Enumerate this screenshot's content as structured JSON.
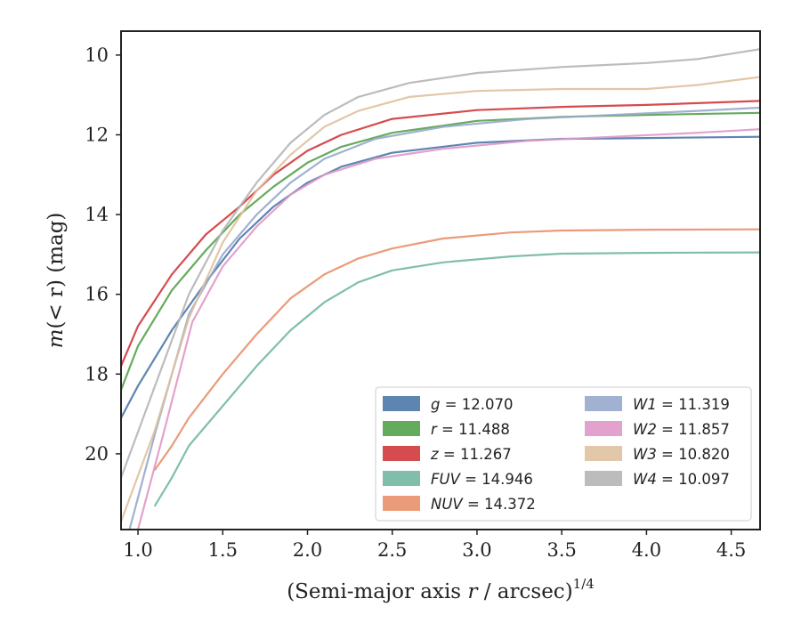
{
  "chart_data": {
    "type": "line",
    "xlabel": "(Semi-major axis r / arcsec)",
    "xlabel_italic": "r",
    "xlabel_prefix": "(Semi-major axis ",
    "xlabel_suffix": " / arcsec)",
    "xlabel_sup": "1/4",
    "ylabel_prefix": "m",
    "ylabel_mid": "(< r)",
    "ylabel_suffix": " (mag)",
    "xlim": [
      0.9,
      4.67
    ],
    "ylim": [
      21.9,
      9.4
    ],
    "y_inverted": true,
    "xticks": [
      1.0,
      1.5,
      2.0,
      2.5,
      3.0,
      3.5,
      4.0,
      4.5
    ],
    "xtick_labels": [
      "1.0",
      "1.5",
      "2.0",
      "2.5",
      "3.0",
      "3.5",
      "4.0",
      "4.5"
    ],
    "yticks": [
      10,
      12,
      14,
      16,
      18,
      20
    ],
    "ytick_labels": [
      "10",
      "12",
      "14",
      "16",
      "18",
      "20"
    ],
    "legend_position": "lower-right",
    "series": [
      {
        "name": "g",
        "value": "12.070",
        "label": "g = 12.070",
        "color": "#4c78a8",
        "x": [
          0.9,
          1.0,
          1.2,
          1.4,
          1.6,
          1.8,
          2.0,
          2.2,
          2.5,
          3.0,
          3.5,
          4.0,
          4.67
        ],
        "y": [
          19.1,
          18.3,
          16.9,
          15.7,
          14.6,
          13.8,
          13.2,
          12.8,
          12.45,
          12.2,
          12.1,
          12.08,
          12.05
        ]
      },
      {
        "name": "r",
        "value": "11.488",
        "label": "r = 11.488",
        "color": "#54a24b",
        "x": [
          0.9,
          1.0,
          1.2,
          1.4,
          1.6,
          1.8,
          2.0,
          2.2,
          2.5,
          3.0,
          3.5,
          4.0,
          4.67
        ],
        "y": [
          18.4,
          17.3,
          15.9,
          14.9,
          14.0,
          13.3,
          12.7,
          12.3,
          11.95,
          11.65,
          11.55,
          11.5,
          11.45
        ]
      },
      {
        "name": "z",
        "value": "11.267",
        "label": "z = 11.267",
        "color": "#d0373b",
        "x": [
          0.9,
          1.0,
          1.2,
          1.4,
          1.6,
          1.8,
          2.0,
          2.2,
          2.5,
          3.0,
          3.5,
          4.0,
          4.67
        ],
        "y": [
          17.8,
          16.8,
          15.5,
          14.5,
          13.8,
          13.0,
          12.4,
          12.0,
          11.6,
          11.38,
          11.3,
          11.25,
          11.15
        ]
      },
      {
        "name": "FUV",
        "value": "14.946",
        "label": "FUV = 14.946",
        "color": "#72b7a2",
        "x": [
          1.1,
          1.2,
          1.3,
          1.5,
          1.7,
          1.9,
          2.1,
          2.3,
          2.5,
          2.8,
          3.2,
          3.5,
          4.0,
          4.67
        ],
        "y": [
          21.3,
          20.6,
          19.8,
          18.8,
          17.8,
          16.9,
          16.2,
          15.7,
          15.4,
          15.2,
          15.05,
          14.98,
          14.96,
          14.95
        ]
      },
      {
        "name": "NUV",
        "value": "14.372",
        "label": "NUV = 14.372",
        "color": "#e8906b",
        "x": [
          1.1,
          1.2,
          1.3,
          1.5,
          1.7,
          1.9,
          2.1,
          2.3,
          2.5,
          2.8,
          3.2,
          3.5,
          4.0,
          4.67
        ],
        "y": [
          20.4,
          19.8,
          19.1,
          18.0,
          17.0,
          16.1,
          15.5,
          15.1,
          14.85,
          14.6,
          14.45,
          14.4,
          14.38,
          14.37
        ]
      },
      {
        "name": "W1",
        "value": "11.319",
        "label": "W1 = 11.319",
        "color": "#97a9cc",
        "x": [
          0.95,
          1.1,
          1.3,
          1.5,
          1.7,
          1.9,
          2.1,
          2.4,
          2.8,
          3.3,
          3.8,
          4.3,
          4.67
        ],
        "y": [
          21.9,
          19.5,
          16.5,
          15.0,
          14.0,
          13.2,
          12.6,
          12.1,
          11.8,
          11.6,
          11.5,
          11.4,
          11.32
        ]
      },
      {
        "name": "W2",
        "value": "11.857",
        "label": "W2 = 11.857",
        "color": "#df98c8",
        "x": [
          1.0,
          1.15,
          1.32,
          1.5,
          1.7,
          1.9,
          2.1,
          2.4,
          2.8,
          3.3,
          3.8,
          4.3,
          4.67
        ],
        "y": [
          21.9,
          19.5,
          16.7,
          15.3,
          14.3,
          13.5,
          13.0,
          12.6,
          12.35,
          12.15,
          12.05,
          11.95,
          11.86
        ]
      },
      {
        "name": "W3",
        "value": "10.820",
        "label": "W3 = 10.820",
        "color": "#dfc19e",
        "x": [
          0.9,
          1.1,
          1.3,
          1.5,
          1.7,
          1.9,
          2.1,
          2.3,
          2.6,
          3.0,
          3.5,
          4.0,
          4.3,
          4.67
        ],
        "y": [
          21.7,
          19.4,
          16.6,
          14.7,
          13.4,
          12.5,
          11.8,
          11.4,
          11.05,
          10.9,
          10.85,
          10.85,
          10.75,
          10.55
        ]
      },
      {
        "name": "W4",
        "value": "10.097",
        "label": "W4 = 10.097",
        "color": "#b5b5b5",
        "x": [
          0.9,
          1.1,
          1.3,
          1.5,
          1.7,
          1.9,
          2.1,
          2.3,
          2.6,
          3.0,
          3.5,
          4.0,
          4.3,
          4.67
        ],
        "y": [
          20.6,
          18.3,
          16.0,
          14.4,
          13.2,
          12.2,
          11.5,
          11.05,
          10.7,
          10.45,
          10.3,
          10.2,
          10.1,
          9.85
        ]
      }
    ]
  }
}
